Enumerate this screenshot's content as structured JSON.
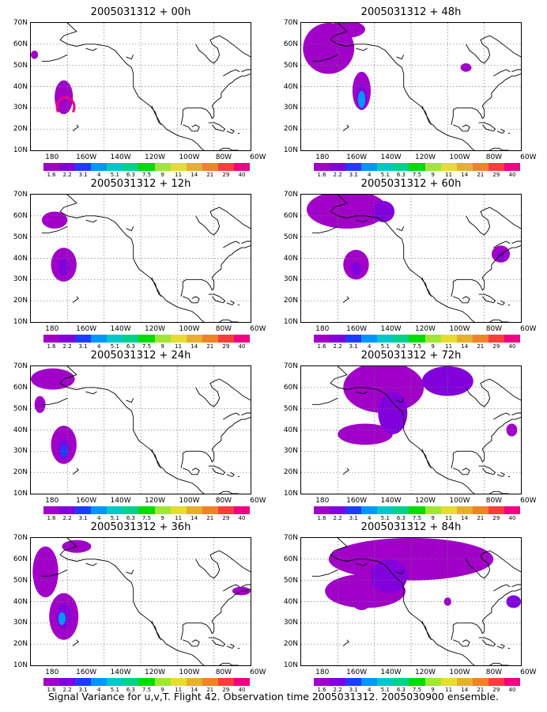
{
  "caption": "Signal Variance for u,v,T. Flight 42. Observation time 2005031312. 2005030900 ensemble.",
  "axes": {
    "lat_labels": [
      "70N",
      "60N",
      "50N",
      "40N",
      "30N",
      "20N",
      "10N"
    ],
    "lon_labels": [
      "180",
      "160W",
      "140W",
      "120W",
      "100W",
      "80W",
      "60W"
    ]
  },
  "colorbar": {
    "labels": [
      "1.6",
      "2.2",
      "3.1",
      "4",
      "5.1",
      "6.3",
      "7.5",
      "9",
      "11",
      "14",
      "21",
      "29",
      "40"
    ],
    "colors": [
      "#a000c8",
      "#8200dc",
      "#1e3cff",
      "#0096ff",
      "#00c8c8",
      "#00d28c",
      "#00dc00",
      "#a0e632",
      "#e6dc32",
      "#e6af2d",
      "#f08228",
      "#fa3c3c",
      "#f00082"
    ]
  },
  "panels": [
    {
      "title": "2005031312 + 00h"
    },
    {
      "title": "2005031312 + 48h"
    },
    {
      "title": "2005031312 + 12h"
    },
    {
      "title": "2005031312 + 60h"
    },
    {
      "title": "2005031312 + 24h"
    },
    {
      "title": "2005031312 + 72h"
    },
    {
      "title": "2005031312 + 36h"
    },
    {
      "title": "2005031312 + 84h"
    }
  ]
}
